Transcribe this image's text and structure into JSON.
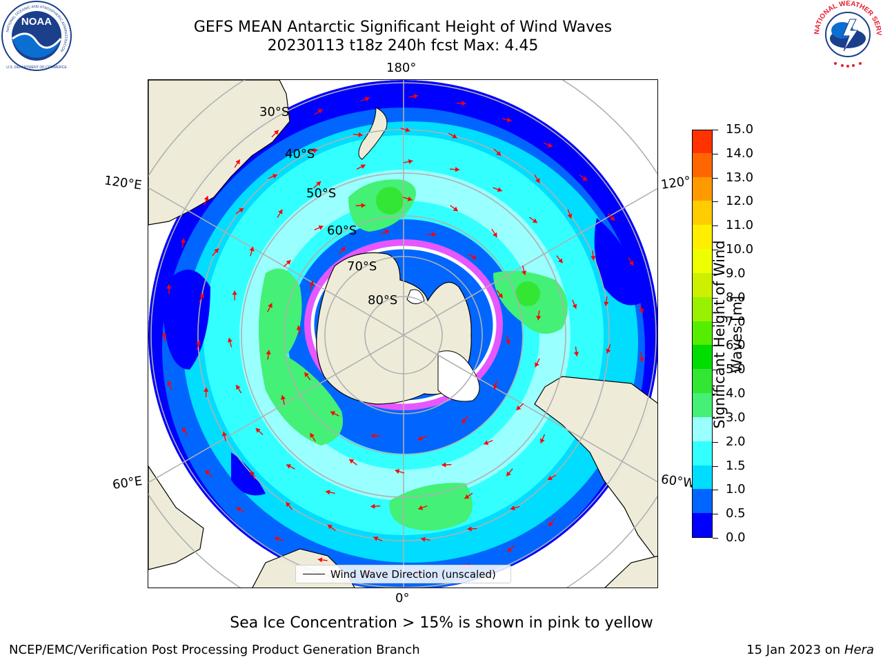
{
  "title": "GEFS MEAN Antarctic Significant Height of Wind Waves",
  "subtitle": "20230113 t18z 240h fcst   Max: 4.45",
  "lon_labels": {
    "top": "180°",
    "bottom": "0°",
    "upper_left": "120°E",
    "upper_right": "120°",
    "lower_left": "60°E",
    "lower_right": "60°W"
  },
  "lat_labels": [
    "30°S",
    "40°S",
    "50°S",
    "60°S",
    "70°S",
    "80°S"
  ],
  "legend": {
    "label": "Wind Wave Direction (unscaled)"
  },
  "colorbar": {
    "title": "Significant Height of Wind Waves [m]",
    "ticks": [
      "0.0",
      "0.5",
      "1.0",
      "1.5",
      "2.0",
      "3.0",
      "4.0",
      "5.0",
      "6.0",
      "7.0",
      "8.0",
      "9.0",
      "10.0",
      "11.0",
      "12.0",
      "13.0",
      "14.0",
      "15.0"
    ],
    "colors": [
      "#0000ff",
      "#0066ff",
      "#00ddff",
      "#33ffff",
      "#99ffff",
      "#44f075",
      "#33e633",
      "#00dd00",
      "#55ee00",
      "#99f000",
      "#ccf000",
      "#eeff00",
      "#ffee00",
      "#ffcc00",
      "#ff9900",
      "#ff6600",
      "#ff3300",
      "#ff0000"
    ]
  },
  "note": "Sea Ice Concentration > 15% is shown in pink to yellow",
  "footer": {
    "left": "NCEP/EMC/Verification Post Processing Product Generation Branch",
    "right_prefix": "15 Jan 2023 on ",
    "right_machine": "Hera"
  },
  "logos": {
    "noaa": "NOAA",
    "nws": "NATIONAL WEATHER SERVICE",
    "noaa_ring": "NATIONAL OCEANIC AND ATMOSPHERIC ADMINISTRATION",
    "noaa_ring_bottom": "U.S. DEPARTMENT OF COMMERCE"
  },
  "colors": {
    "land": "#eeecd9",
    "ocean_low": "#0000ff",
    "ocean_mid": "#00e5ff",
    "ocean_high": "#99ffff",
    "waves_green": "#44f075",
    "arrow": "#ff0000",
    "grid": "#b0b0b0"
  }
}
